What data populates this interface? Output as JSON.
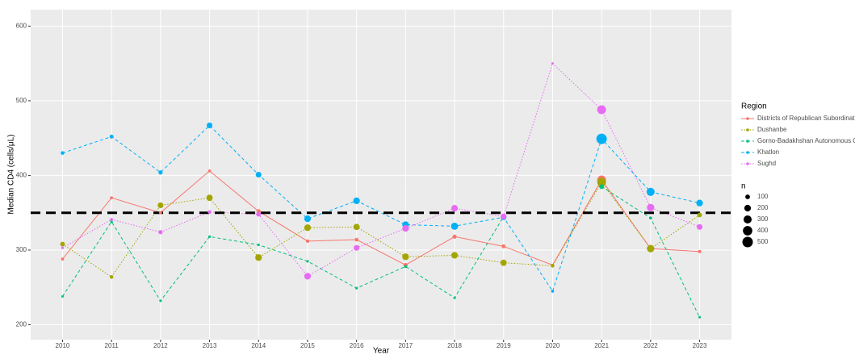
{
  "chart_data": {
    "type": "line",
    "x_label": "Year",
    "y_label": "Median CD4 (cells/μL)",
    "x": [
      2010,
      2011,
      2012,
      2013,
      2014,
      2015,
      2016,
      2017,
      2018,
      2019,
      2020,
      2021,
      2022,
      2023
    ],
    "xlim": [
      2009.35,
      2023.65
    ],
    "xticks": [
      2010,
      2011,
      2012,
      2013,
      2014,
      2015,
      2016,
      2017,
      2018,
      2019,
      2020,
      2021,
      2022,
      2023
    ],
    "ylim": [
      180,
      622
    ],
    "yticks": [
      200,
      300,
      400,
      500,
      600
    ],
    "grid": true,
    "reference_line": {
      "value": 350,
      "color": "#000000"
    },
    "legend_title": "Region",
    "size_legend": {
      "title": "n",
      "values": [
        100,
        200,
        300,
        400,
        500
      ]
    },
    "series": [
      {
        "name": "Districts of Republican Subordination",
        "color": "#F8766D",
        "line_style": "solid",
        "values": [
          288,
          370,
          350,
          406,
          352,
          312,
          314,
          280,
          318,
          305,
          280,
          394,
          302,
          298
        ],
        "sizes": [
          40,
          40,
          40,
          40,
          80,
          50,
          60,
          80,
          80,
          70,
          30,
          350,
          100,
          50
        ]
      },
      {
        "name": "Dushanbe",
        "color": "#A3A500",
        "line_style": "dotted",
        "values": [
          308,
          264,
          360,
          370,
          290,
          330,
          331,
          291,
          293,
          283,
          279,
          391,
          302,
          347
        ],
        "sizes": [
          100,
          60,
          150,
          180,
          200,
          200,
          180,
          200,
          200,
          180,
          60,
          350,
          250,
          100
        ]
      },
      {
        "name": "Gorno-Badakhshan Autonomous Oblast",
        "color": "#00BF7D",
        "line_style": "dashed",
        "values": [
          238,
          338,
          232,
          318,
          307,
          285,
          249,
          278,
          236,
          345,
          null,
          385,
          343,
          210
        ],
        "sizes": [
          20,
          30,
          20,
          30,
          30,
          30,
          30,
          40,
          30,
          40,
          null,
          100,
          40,
          20
        ]
      },
      {
        "name": "Khatlon",
        "color": "#00B0F6",
        "line_style": "dashed",
        "values": [
          430,
          452,
          404,
          467,
          401,
          342,
          366,
          334,
          332,
          344,
          245,
          449,
          378,
          363
        ],
        "sizes": [
          60,
          70,
          80,
          150,
          150,
          200,
          200,
          200,
          230,
          150,
          40,
          500,
          300,
          200
        ]
      },
      {
        "name": "Sughd",
        "color": "#E76BF3",
        "line_style": "dotted",
        "values": [
          303,
          341,
          324,
          351,
          348,
          265,
          303,
          329,
          356,
          345,
          550,
          488,
          357,
          331
        ],
        "sizes": [
          30,
          40,
          80,
          60,
          100,
          200,
          150,
          200,
          200,
          150,
          20,
          350,
          250,
          150
        ]
      }
    ]
  }
}
